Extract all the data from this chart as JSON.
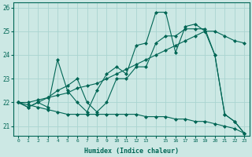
{
  "xlabel": "Humidex (Indice chaleur)",
  "bg_color": "#cce8e4",
  "grid_color": "#aad4d0",
  "line_color": "#006655",
  "xlim": [
    -0.5,
    23.5
  ],
  "ylim": [
    20.6,
    26.2
  ],
  "yticks": [
    21,
    22,
    23,
    24,
    25,
    26
  ],
  "xtick_labels": [
    "0",
    "1",
    "2",
    "3",
    "4",
    "5",
    "6",
    "7",
    "8",
    "9",
    "10",
    "11",
    "12",
    "13",
    "",
    "15",
    "16",
    "17",
    "18",
    "19",
    "20",
    "21",
    "22",
    "23"
  ],
  "series": [
    [
      22.0,
      21.8,
      22.0,
      21.8,
      23.8,
      22.5,
      22.0,
      21.6,
      22.5,
      23.2,
      23.5,
      23.2,
      24.4,
      24.5,
      25.8,
      25.8,
      24.1,
      25.2,
      25.3,
      25.0,
      24.0,
      21.5,
      21.2,
      20.7
    ],
    [
      22.0,
      21.8,
      22.0,
      22.2,
      22.5,
      22.7,
      23.0,
      22.0,
      21.6,
      22.0,
      23.0,
      23.0,
      23.5,
      23.5,
      24.5,
      24.8,
      24.8,
      25.1,
      25.1,
      25.1,
      24.0,
      21.5,
      21.2,
      20.7
    ],
    [
      22.0,
      22.0,
      22.1,
      22.2,
      22.3,
      22.4,
      22.6,
      22.7,
      22.8,
      23.0,
      23.2,
      23.4,
      23.6,
      23.8,
      24.0,
      24.2,
      24.4,
      24.6,
      24.8,
      25.0,
      25.0,
      24.8,
      24.6,
      24.5
    ],
    [
      22.0,
      21.9,
      21.8,
      21.7,
      21.6,
      21.5,
      21.5,
      21.5,
      21.5,
      21.5,
      21.5,
      21.5,
      21.5,
      21.4,
      21.4,
      21.4,
      21.3,
      21.3,
      21.2,
      21.2,
      21.1,
      21.0,
      20.9,
      20.7
    ]
  ],
  "figwidth": 3.2,
  "figheight": 2.0,
  "dpi": 100
}
